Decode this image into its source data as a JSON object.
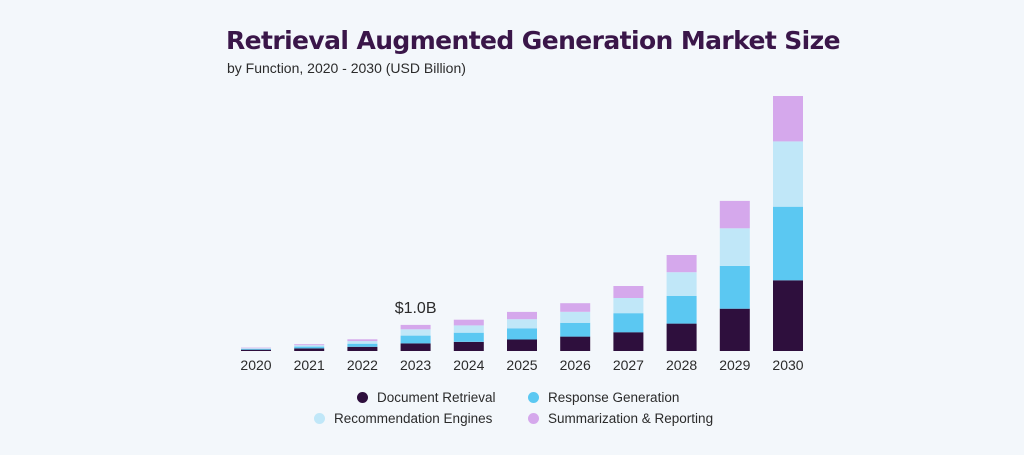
{
  "chart_data": {
    "type": "bar",
    "stacked": true,
    "title": "Retrieval Augmented Generation Market Size",
    "subtitle": "by Function, 2020 - 2030 (USD Billion)",
    "categories": [
      "2020",
      "2021",
      "2022",
      "2023",
      "2024",
      "2025",
      "2026",
      "2027",
      "2028",
      "2029",
      "2030"
    ],
    "series": [
      {
        "name": "Document Retrieval",
        "color": "#2e0f3d",
        "values": [
          0.05,
          0.1,
          0.16,
          0.29,
          0.35,
          0.44,
          0.55,
          0.72,
          1.05,
          1.62,
          2.71
        ]
      },
      {
        "name": "Response Generation",
        "color": "#5bc8f2",
        "values": [
          0.03,
          0.07,
          0.12,
          0.3,
          0.35,
          0.43,
          0.53,
          0.73,
          1.06,
          1.64,
          2.82
        ]
      },
      {
        "name": "Recommendation Engines",
        "color": "#c0e7f8",
        "values": [
          0.03,
          0.05,
          0.1,
          0.24,
          0.28,
          0.35,
          0.42,
          0.58,
          0.91,
          1.44,
          2.5
        ]
      },
      {
        "name": "Summarization & Reporting",
        "color": "#d5a8ec",
        "values": [
          0.02,
          0.04,
          0.07,
          0.17,
          0.22,
          0.28,
          0.33,
          0.46,
          0.66,
          1.05,
          1.74
        ]
      }
    ],
    "annotations": [
      {
        "category": "2023",
        "text": "$1.0B"
      }
    ],
    "legend_position": "bottom",
    "grid": false,
    "ylim": [
      0,
      10
    ]
  }
}
